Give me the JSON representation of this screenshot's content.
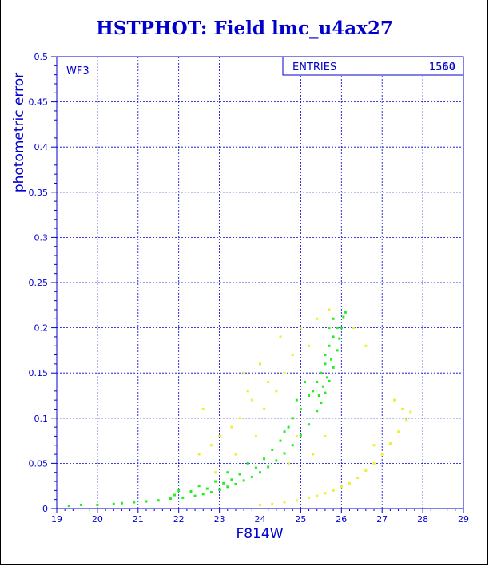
{
  "chart_data": {
    "type": "scatter",
    "title": "HSTPHOT: Field lmc_u4ax27",
    "xlabel": "F814W",
    "ylabel": "photometric error",
    "xlim": [
      19,
      29
    ],
    "ylim": [
      0,
      0.5
    ],
    "x_ticks": [
      "19",
      "20",
      "21",
      "22",
      "23",
      "24",
      "25",
      "26",
      "27",
      "28",
      "29"
    ],
    "y_ticks": [
      "0",
      "0.05",
      "0.1",
      "0.15",
      "0.2",
      "0.25",
      "0.3",
      "0.35",
      "0.4",
      "0.45",
      "0.5"
    ],
    "grid": true,
    "annotation": "WF3",
    "stats_box": {
      "label": "ENTRIES",
      "value": "1560",
      "value_overprint": "1114"
    },
    "colors": {
      "axes": "#0000cc",
      "green": "#22ee22",
      "yellow": "#eeee33"
    },
    "series": [
      {
        "color": "green",
        "points": [
          [
            19.3,
            0.003
          ],
          [
            19.6,
            0.004
          ],
          [
            20.0,
            0.004
          ],
          [
            20.4,
            0.005
          ],
          [
            20.6,
            0.006
          ],
          [
            20.9,
            0.007
          ],
          [
            21.2,
            0.008
          ],
          [
            21.5,
            0.009
          ],
          [
            21.8,
            0.011
          ],
          [
            22.1,
            0.012
          ],
          [
            22.4,
            0.014
          ],
          [
            22.6,
            0.016
          ],
          [
            22.8,
            0.018
          ],
          [
            23.0,
            0.021
          ],
          [
            23.2,
            0.024
          ],
          [
            23.4,
            0.027
          ],
          [
            23.6,
            0.031
          ],
          [
            23.8,
            0.035
          ],
          [
            24.0,
            0.04
          ],
          [
            24.2,
            0.046
          ],
          [
            24.4,
            0.053
          ],
          [
            24.6,
            0.061
          ],
          [
            24.8,
            0.07
          ],
          [
            25.0,
            0.081
          ],
          [
            25.2,
            0.093
          ],
          [
            25.4,
            0.108
          ],
          [
            25.5,
            0.117
          ],
          [
            25.6,
            0.128
          ],
          [
            25.7,
            0.141
          ],
          [
            25.8,
            0.156
          ],
          [
            25.9,
            0.175
          ],
          [
            25.95,
            0.188
          ],
          [
            26.0,
            0.2
          ],
          [
            26.05,
            0.212
          ],
          [
            26.1,
            0.217
          ],
          [
            25.5,
            0.15
          ],
          [
            25.6,
            0.17
          ],
          [
            25.7,
            0.18
          ],
          [
            25.4,
            0.14
          ],
          [
            25.3,
            0.13
          ],
          [
            25.2,
            0.125
          ],
          [
            25.8,
            0.19
          ],
          [
            25.9,
            0.2
          ],
          [
            25.6,
            0.16
          ],
          [
            24.8,
            0.1
          ],
          [
            24.9,
            0.12
          ],
          [
            25.1,
            0.14
          ],
          [
            24.7,
            0.09
          ],
          [
            24.5,
            0.075
          ],
          [
            24.3,
            0.065
          ],
          [
            24.1,
            0.055
          ],
          [
            23.9,
            0.045
          ],
          [
            23.5,
            0.038
          ],
          [
            23.3,
            0.032
          ],
          [
            23.1,
            0.028
          ],
          [
            22.7,
            0.022
          ],
          [
            22.3,
            0.019
          ],
          [
            21.9,
            0.015
          ],
          [
            25.7,
            0.2
          ],
          [
            25.8,
            0.21
          ],
          [
            25.75,
            0.165
          ],
          [
            25.65,
            0.145
          ],
          [
            25.55,
            0.135
          ],
          [
            25.45,
            0.125
          ],
          [
            25.0,
            0.11
          ],
          [
            24.6,
            0.085
          ],
          [
            23.7,
            0.05
          ],
          [
            23.2,
            0.04
          ],
          [
            22.9,
            0.03
          ],
          [
            22.5,
            0.025
          ],
          [
            22.0,
            0.02
          ]
        ]
      },
      {
        "color": "yellow",
        "points": [
          [
            24.0,
            0.004
          ],
          [
            24.3,
            0.005
          ],
          [
            24.6,
            0.007
          ],
          [
            24.9,
            0.009
          ],
          [
            25.2,
            0.012
          ],
          [
            25.4,
            0.014
          ],
          [
            25.6,
            0.017
          ],
          [
            25.8,
            0.02
          ],
          [
            26.0,
            0.024
          ],
          [
            26.2,
            0.028
          ],
          [
            26.4,
            0.034
          ],
          [
            26.6,
            0.042
          ],
          [
            26.8,
            0.05
          ],
          [
            27.0,
            0.06
          ],
          [
            27.2,
            0.072
          ],
          [
            27.4,
            0.085
          ],
          [
            27.6,
            0.098
          ],
          [
            27.7,
            0.107
          ],
          [
            25.0,
            0.2
          ],
          [
            25.2,
            0.18
          ],
          [
            24.8,
            0.17
          ],
          [
            24.6,
            0.15
          ],
          [
            24.4,
            0.13
          ],
          [
            24.2,
            0.14
          ],
          [
            24.0,
            0.16
          ],
          [
            23.8,
            0.12
          ],
          [
            23.5,
            0.1
          ],
          [
            23.3,
            0.09
          ],
          [
            23.0,
            0.08
          ],
          [
            22.8,
            0.07
          ],
          [
            22.5,
            0.06
          ],
          [
            22.6,
            0.11
          ],
          [
            23.6,
            0.15
          ],
          [
            24.5,
            0.19
          ],
          [
            25.4,
            0.21
          ],
          [
            25.7,
            0.22
          ],
          [
            26.3,
            0.2
          ],
          [
            26.6,
            0.18
          ],
          [
            27.3,
            0.12
          ],
          [
            27.5,
            0.11
          ],
          [
            26.8,
            0.07
          ],
          [
            24.1,
            0.11
          ],
          [
            23.9,
            0.08
          ],
          [
            24.7,
            0.05
          ],
          [
            25.3,
            0.06
          ],
          [
            23.4,
            0.06
          ],
          [
            22.9,
            0.04
          ],
          [
            23.7,
            0.13
          ],
          [
            24.9,
            0.08
          ],
          [
            25.6,
            0.08
          ]
        ]
      }
    ]
  }
}
